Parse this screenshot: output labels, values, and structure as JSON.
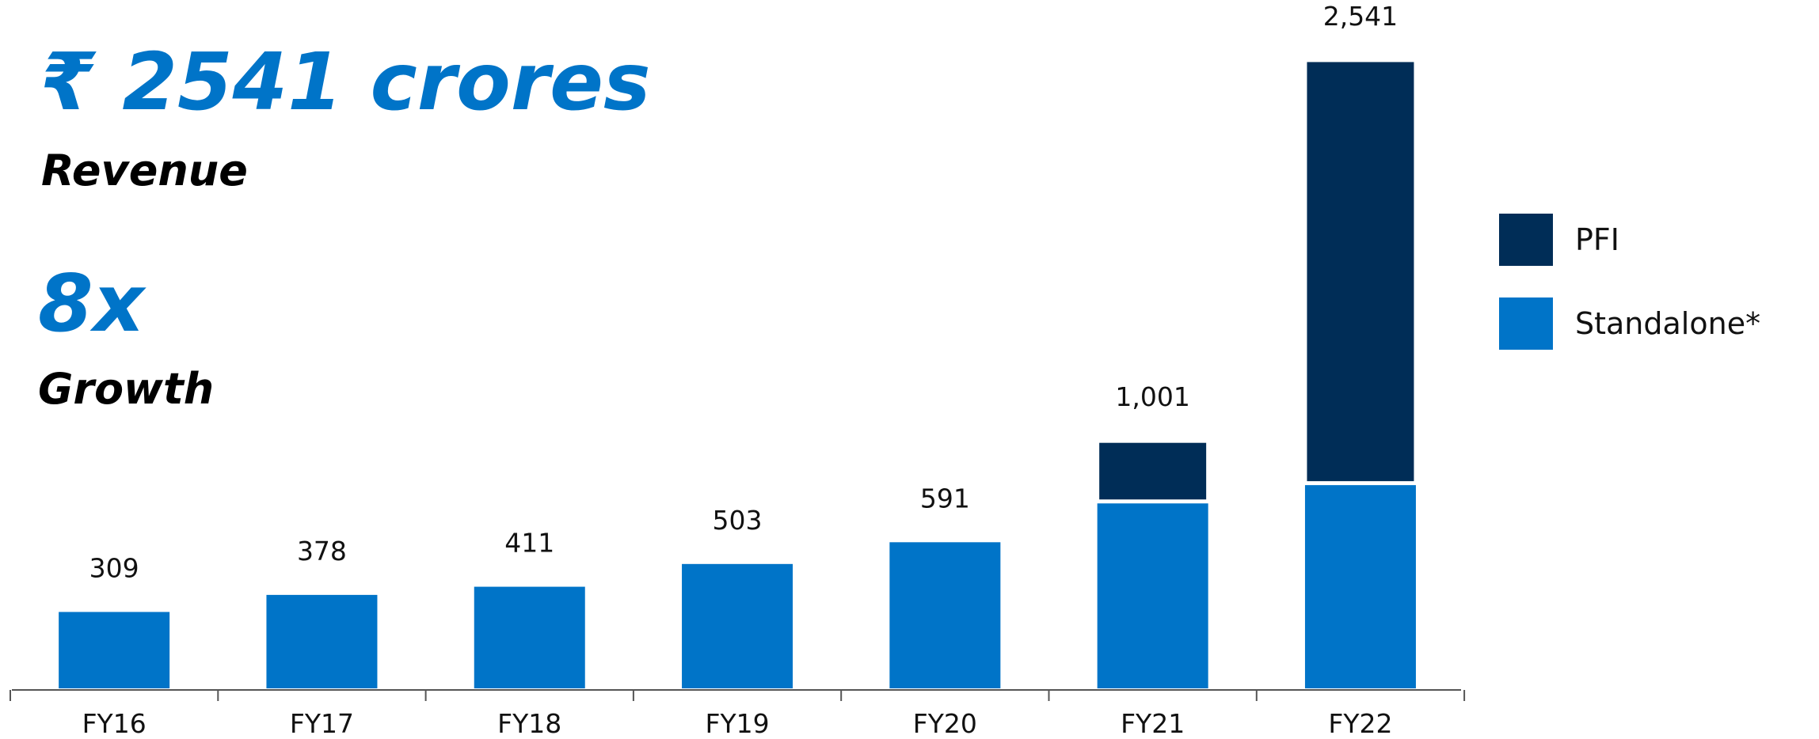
{
  "chart_data": {
    "type": "stacked-bar",
    "headline": "₹ 2541 crores",
    "headline_caption": "Revenue",
    "growth": "8x",
    "growth_caption": "Growth",
    "categories": [
      "FY16",
      "FY17",
      "FY18",
      "FY19",
      "FY20",
      "FY21",
      "FY22"
    ],
    "series": [
      {
        "name": "Standalone*",
        "color": "#0074c8",
        "values": [
          309,
          378,
          411,
          503,
          591,
          756,
          830
        ]
      },
      {
        "name": "PFI",
        "color": "#002d57",
        "values": [
          null,
          null,
          null,
          null,
          null,
          245,
          1711
        ]
      }
    ],
    "totals": [
      309,
      378,
      411,
      503,
      591,
      1001,
      2541
    ],
    "total_labels": [
      "309",
      "378",
      "411",
      "503",
      "591",
      "1,001",
      "2,541"
    ],
    "legend": "right"
  }
}
